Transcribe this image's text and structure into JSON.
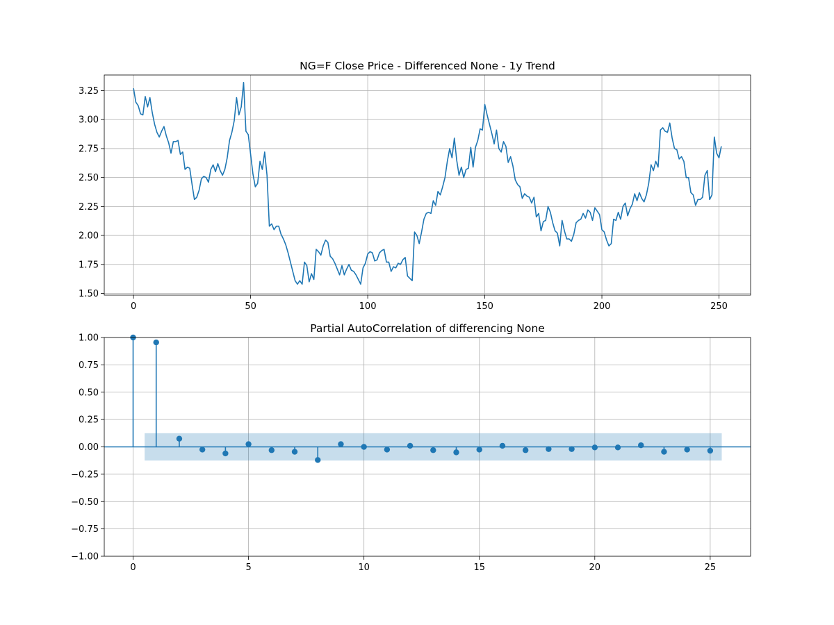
{
  "chart_data": [
    {
      "type": "line",
      "title": "NG=F Close Price - Differenced None - 1y Trend",
      "xlabel": "",
      "ylabel": "",
      "xlim": [
        -12.5,
        263.5
      ],
      "ylim": [
        1.485,
        3.385
      ],
      "xticks": [
        0,
        50,
        100,
        150,
        200,
        250
      ],
      "yticks": [
        1.5,
        1.75,
        2.0,
        2.25,
        2.5,
        2.75,
        3.0,
        3.25
      ],
      "ytick_labels": [
        "1.50",
        "1.75",
        "2.00",
        "2.25",
        "2.50",
        "2.75",
        "3.00",
        "3.25"
      ],
      "grid": true,
      "color": "#1f77b4",
      "series": [
        {
          "values": [
            3.27,
            3.15,
            3.12,
            3.05,
            3.04,
            3.2,
            3.11,
            3.19,
            3.06,
            2.96,
            2.89,
            2.85,
            2.9,
            2.94,
            2.86,
            2.8,
            2.71,
            2.81,
            2.81,
            2.82,
            2.7,
            2.72,
            2.57,
            2.59,
            2.58,
            2.44,
            2.31,
            2.33,
            2.39,
            2.49,
            2.51,
            2.5,
            2.46,
            2.57,
            2.61,
            2.55,
            2.62,
            2.56,
            2.52,
            2.57,
            2.67,
            2.82,
            2.89,
            2.99,
            3.19,
            3.04,
            3.11,
            3.32,
            2.9,
            2.87,
            2.7,
            2.53,
            2.42,
            2.45,
            2.64,
            2.57,
            2.72,
            2.52,
            2.08,
            2.1,
            2.05,
            2.08,
            2.08,
            2.01,
            1.97,
            1.92,
            1.85,
            1.77,
            1.69,
            1.61,
            1.58,
            1.61,
            1.58,
            1.77,
            1.74,
            1.6,
            1.67,
            1.62,
            1.88,
            1.86,
            1.83,
            1.91,
            1.96,
            1.94,
            1.82,
            1.8,
            1.76,
            1.71,
            1.66,
            1.74,
            1.66,
            1.71,
            1.75,
            1.7,
            1.69,
            1.66,
            1.62,
            1.58,
            1.72,
            1.76,
            1.84,
            1.86,
            1.85,
            1.78,
            1.79,
            1.85,
            1.87,
            1.88,
            1.77,
            1.77,
            1.69,
            1.73,
            1.72,
            1.76,
            1.75,
            1.79,
            1.81,
            1.65,
            1.63,
            1.61,
            2.03,
            2.0,
            1.93,
            2.03,
            2.14,
            2.19,
            2.2,
            2.19,
            2.3,
            2.26,
            2.38,
            2.35,
            2.42,
            2.5,
            2.64,
            2.75,
            2.67,
            2.84,
            2.65,
            2.52,
            2.59,
            2.5,
            2.57,
            2.58,
            2.76,
            2.59,
            2.76,
            2.82,
            2.92,
            2.91,
            3.13,
            3.04,
            2.96,
            2.88,
            2.79,
            2.91,
            2.75,
            2.72,
            2.81,
            2.77,
            2.63,
            2.68,
            2.6,
            2.48,
            2.44,
            2.42,
            2.32,
            2.36,
            2.34,
            2.33,
            2.28,
            2.33,
            2.16,
            2.19,
            2.04,
            2.12,
            2.13,
            2.25,
            2.2,
            2.11,
            2.04,
            2.02,
            1.91,
            2.13,
            2.04,
            1.97,
            1.97,
            1.95,
            2.01,
            2.11,
            2.13,
            2.14,
            2.19,
            2.15,
            2.22,
            2.2,
            2.13,
            2.24,
            2.21,
            2.18,
            2.05,
            2.03,
            1.96,
            1.91,
            1.93,
            2.14,
            2.13,
            2.2,
            2.14,
            2.25,
            2.28,
            2.17,
            2.23,
            2.27,
            2.36,
            2.3,
            2.37,
            2.32,
            2.29,
            2.35,
            2.45,
            2.61,
            2.56,
            2.64,
            2.59,
            2.91,
            2.93,
            2.9,
            2.89,
            2.97,
            2.84,
            2.75,
            2.74,
            2.66,
            2.68,
            2.64,
            2.5,
            2.5,
            2.37,
            2.35,
            2.26,
            2.31,
            2.31,
            2.33,
            2.52,
            2.56,
            2.31,
            2.35,
            2.85,
            2.71,
            2.67,
            2.77
          ]
        }
      ]
    },
    {
      "type": "stem",
      "title": "Partial AutoCorrelation of differencing None",
      "xlabel": "",
      "ylabel": "",
      "xlim": [
        -1.25,
        26.75
      ],
      "ylim": [
        -1.0,
        1.0
      ],
      "xticks": [
        0,
        5,
        10,
        15,
        20,
        25
      ],
      "yticks": [
        -1.0,
        -0.75,
        -0.5,
        -0.25,
        0.0,
        0.25,
        0.5,
        0.75,
        1.0
      ],
      "ytick_labels": [
        "−1.00",
        "−0.75",
        "−0.50",
        "−0.25",
        "0.00",
        "0.25",
        "0.50",
        "0.75",
        "1.00"
      ],
      "grid": true,
      "color": "#1f77b4",
      "confidence_band": {
        "x": [
          0.5,
          25.5
        ],
        "lower": -0.125,
        "upper": 0.125,
        "color": "#1f77b4"
      },
      "lags": [
        0,
        1,
        2,
        3,
        4,
        5,
        6,
        7,
        8,
        9,
        10,
        11,
        12,
        13,
        14,
        15,
        16,
        17,
        18,
        19,
        20,
        21,
        22,
        23,
        24,
        25
      ],
      "values": [
        1.0,
        0.955,
        0.075,
        -0.025,
        -0.06,
        0.025,
        -0.03,
        -0.045,
        -0.12,
        0.025,
        0.0,
        -0.025,
        0.01,
        -0.03,
        -0.05,
        -0.025,
        0.01,
        -0.03,
        -0.02,
        -0.02,
        -0.005,
        -0.005,
        0.015,
        -0.045,
        -0.025,
        -0.035
      ]
    }
  ]
}
